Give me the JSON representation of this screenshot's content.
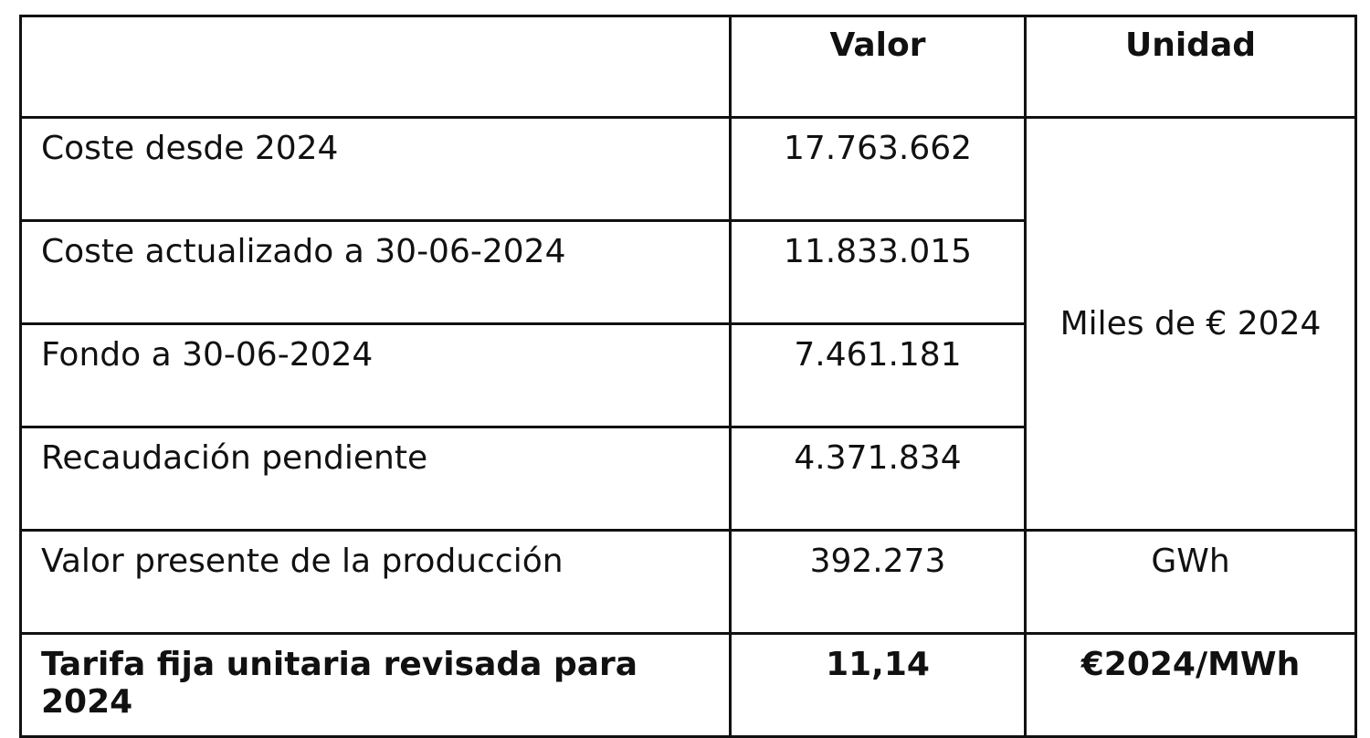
{
  "header": {
    "label": "",
    "value": "Valor",
    "unit": "Unidad"
  },
  "rows": [
    {
      "label": "Coste desde 2024",
      "value": "17.763.662"
    },
    {
      "label": "Coste actualizado a 30-06-2024",
      "value": "11.833.015"
    },
    {
      "label": "Fondo a 30-06-2024",
      "value": "7.461.181"
    },
    {
      "label": "Recaudación pendiente",
      "value": "4.371.834"
    },
    {
      "label": "Valor presente de la producción",
      "value": "392.273",
      "unit": "GWh"
    },
    {
      "label": "Tarifa fija unitaria revisada para 2024",
      "value": "11,14",
      "unit": "€2024/MWh"
    }
  ],
  "merged_unit": "Miles de € 2024"
}
